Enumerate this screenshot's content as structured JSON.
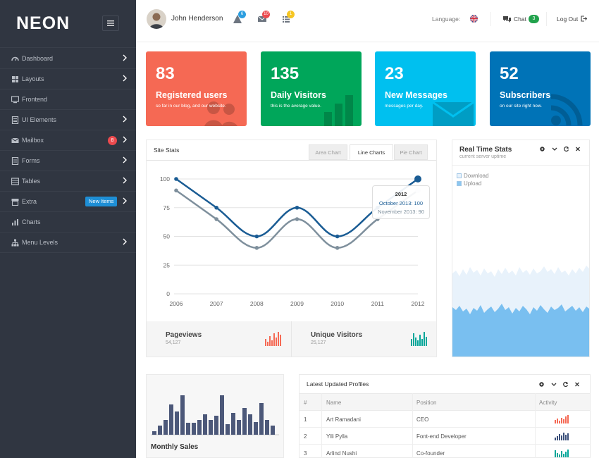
{
  "brand": "NEON",
  "sidebar": {
    "items": [
      {
        "label": "Dashboard",
        "icon": "dashboard-icon",
        "chevron": true
      },
      {
        "label": "Layouts",
        "icon": "layouts-icon",
        "chevron": true
      },
      {
        "label": "Frontend",
        "icon": "monitor-icon",
        "chevron": false
      },
      {
        "label": "UI Elements",
        "icon": "ui-elements-icon",
        "chevron": true
      },
      {
        "label": "Mailbox",
        "icon": "mail-icon",
        "chevron": true,
        "badge": "8"
      },
      {
        "label": "Forms",
        "icon": "forms-icon",
        "chevron": true
      },
      {
        "label": "Tables",
        "icon": "tables-icon",
        "chevron": true
      },
      {
        "label": "Extra",
        "icon": "extra-icon",
        "chevron": true,
        "tag": "New Items"
      },
      {
        "label": "Charts",
        "icon": "charts-icon",
        "chevron": false
      },
      {
        "label": "Menu Levels",
        "icon": "sitemap-icon",
        "chevron": true
      }
    ]
  },
  "header": {
    "user_name": "John Henderson",
    "notifications_count": "6",
    "messages_count": "10",
    "tasks_count": "1",
    "language_label": "Language:",
    "chat_label": "Chat",
    "chat_count": "3",
    "logout_label": "Log Out"
  },
  "tiles": [
    {
      "number": "83",
      "title": "Registered users",
      "subtitle": "so far in our blog, and our website.",
      "color": "#f56954"
    },
    {
      "number": "135",
      "title": "Daily Visitors",
      "subtitle": "this is the average value.",
      "color": "#00a65a"
    },
    {
      "number": "23",
      "title": "New Messages",
      "subtitle": "messages per day.",
      "color": "#00c0ef"
    },
    {
      "number": "52",
      "title": "Subscribers",
      "subtitle": "on our site right now.",
      "color": "#0073b7"
    }
  ],
  "site_stats": {
    "title": "Site Stats",
    "tabs": [
      "Area Chart",
      "Line Charts",
      "Pie Chart"
    ],
    "active_tab": "Line Charts",
    "tooltip": {
      "title": "2012",
      "line1": "October 2013: 100",
      "line2": "November 2013: 90"
    },
    "pageviews_label": "Pageviews",
    "pageviews_value": "54,127",
    "unique_label": "Unique Visitors",
    "unique_value": "25,127"
  },
  "chart_data": {
    "type": "line",
    "x": [
      "2006",
      "2007",
      "2008",
      "2009",
      "2010",
      "2011",
      "2012"
    ],
    "yticks": [
      "0",
      "25",
      "50",
      "75",
      "100"
    ],
    "ylim": [
      0,
      100
    ],
    "series": [
      {
        "name": "October 2013",
        "values": [
          100,
          75,
          50,
          75,
          50,
          75,
          100
        ],
        "color": "#1a5c94"
      },
      {
        "name": "November 2013",
        "values": [
          90,
          65,
          40,
          65,
          40,
          65,
          90
        ],
        "color": "#7e8f9c"
      }
    ],
    "grid": true
  },
  "realtime": {
    "title": "Real Time Stats",
    "subtitle": "current server uptime",
    "legend": [
      "Download",
      "Upload"
    ]
  },
  "monthly_sales": {
    "title": "Monthly Sales"
  },
  "profiles": {
    "title": "Latest Updated Profiles",
    "columns": [
      "#",
      "Name",
      "Position",
      "Activity"
    ],
    "rows": [
      {
        "num": "1",
        "name": "Art Ramadani",
        "position": "CEO",
        "color": "#f56954"
      },
      {
        "num": "2",
        "name": "Ylli Pylla",
        "position": "Font-end Developer",
        "color": "#3a4f7a"
      },
      {
        "num": "3",
        "name": "Arlind Nushi",
        "position": "Co-founder",
        "color": "#00a699"
      }
    ]
  }
}
